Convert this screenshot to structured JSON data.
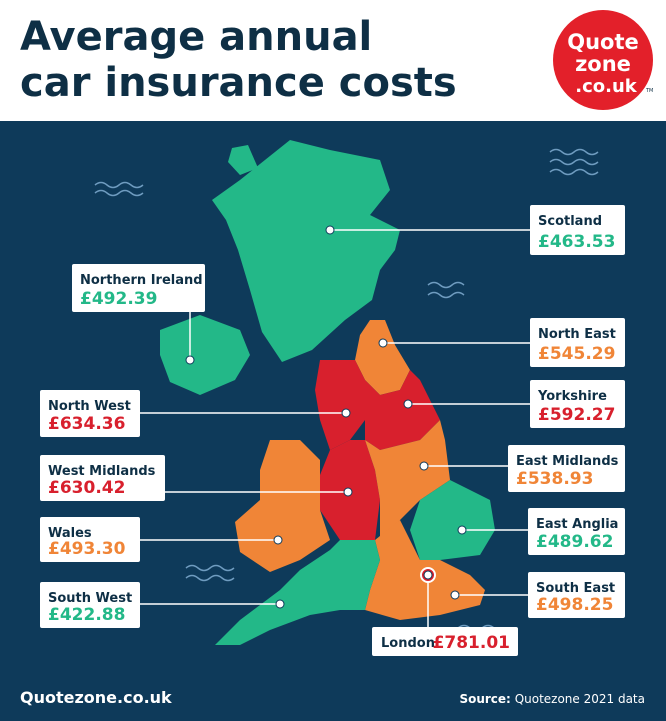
{
  "header": {
    "title_lines": [
      "Average annual",
      "car insurance costs"
    ]
  },
  "logo": {
    "lines": [
      "Quote",
      "zone",
      ".co.uk"
    ],
    "mark": "TM"
  },
  "regions": [
    {
      "name": "Scotland",
      "price": "£463.53"
    },
    {
      "name": "Northern Ireland",
      "price": "£492.39"
    },
    {
      "name": "North East",
      "price": "£545.29"
    },
    {
      "name": "Yorkshire",
      "price": "£592.27"
    },
    {
      "name": "North West",
      "price": "£634.36"
    },
    {
      "name": "West Midlands",
      "price": "£630.42"
    },
    {
      "name": "East Midlands",
      "price": "£538.93"
    },
    {
      "name": "Wales",
      "price": "£493.30"
    },
    {
      "name": "East Anglia",
      "price": "£489.62"
    },
    {
      "name": "South West",
      "price": "£422.88"
    },
    {
      "name": "South East",
      "price": "£498.25"
    },
    {
      "name": "London",
      "price": "£781.01"
    }
  ],
  "footer": {
    "site": "Quotezone.co.uk",
    "source_label": "Source:",
    "source_text": "Quotezone 2021 data"
  }
}
